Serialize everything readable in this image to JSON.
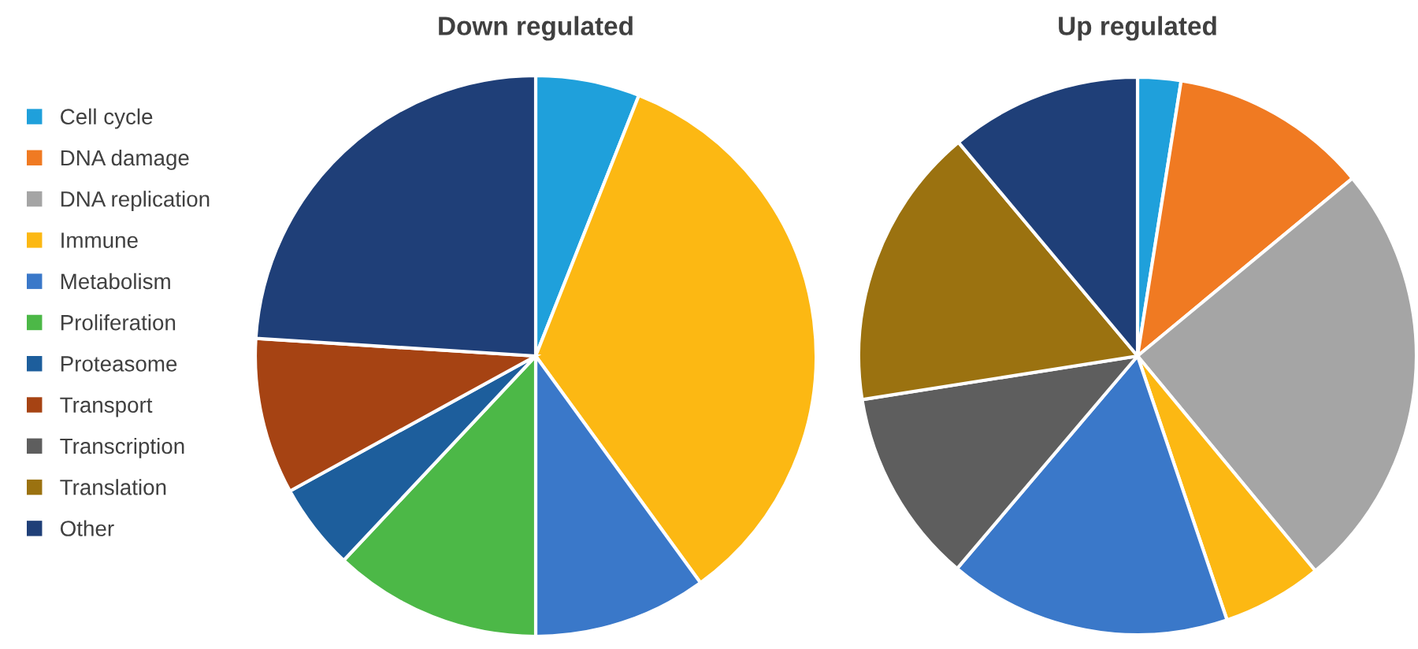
{
  "chart_data": [
    {
      "type": "pie",
      "title": "Down regulated",
      "legend": "left",
      "categories": [
        "Cell cycle",
        "DNA damage",
        "DNA replication",
        "Immune",
        "Metabolism",
        "Proliferation",
        "Proteasome",
        "Transport",
        "Transcription",
        "Translation",
        "Other"
      ],
      "values": [
        6,
        0,
        0,
        34,
        10,
        12,
        5,
        9,
        0,
        0,
        24
      ],
      "colors": [
        "#1fa0db",
        "#f07a22",
        "#a5a5a5",
        "#fcb813",
        "#3a78c9",
        "#4cb847",
        "#1d5e9c",
        "#a64313",
        "#5e5e5e",
        "#9b7210",
        "#1f3f78"
      ]
    },
    {
      "type": "pie",
      "title": "Up regulated",
      "categories": [
        null,
        null,
        null,
        null,
        null,
        null,
        null,
        null,
        null,
        null,
        null
      ],
      "values": [
        2.5,
        11.5,
        25,
        5.8,
        16.4,
        0,
        0,
        0,
        11.3,
        16.4,
        11.1
      ],
      "colors": [
        "#1fa0db",
        "#f07a22",
        "#a5a5a5",
        "#fcb813",
        "#3a78c9",
        "#4cb847",
        "#1d5e9c",
        "#a64313",
        "#5e5e5e",
        "#9b7210",
        "#1f3f78"
      ]
    }
  ]
}
